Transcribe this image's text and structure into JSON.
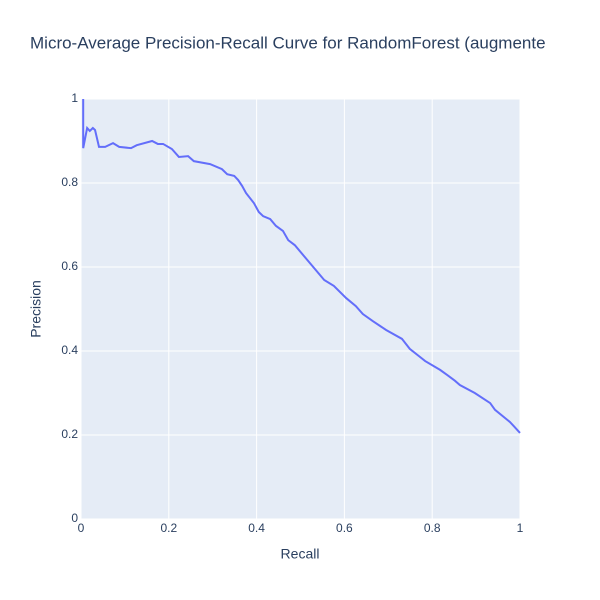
{
  "chart_data": {
    "type": "line",
    "title": "Micro-Average Precision-Recall Curve for RandomForest (augmente",
    "xlabel": "Recall",
    "ylabel": "Precision",
    "xlim": [
      0,
      1
    ],
    "ylim": [
      0,
      1
    ],
    "xticks": [
      0,
      0.2,
      0.4,
      0.6,
      0.8,
      1
    ],
    "yticks": [
      0,
      0.2,
      0.4,
      0.6,
      0.8,
      1
    ],
    "grid": true,
    "series": [
      {
        "name": "RandomForest",
        "color": "#636efa",
        "x": [
          0.005,
          0.005,
          0.014,
          0.02,
          0.027,
          0.032,
          0.041,
          0.055,
          0.073,
          0.087,
          0.114,
          0.127,
          0.162,
          0.175,
          0.187,
          0.207,
          0.223,
          0.244,
          0.257,
          0.294,
          0.321,
          0.333,
          0.349,
          0.358,
          0.367,
          0.376,
          0.394,
          0.405,
          0.415,
          0.431,
          0.444,
          0.46,
          0.472,
          0.487,
          0.554,
          0.576,
          0.604,
          0.626,
          0.642,
          0.665,
          0.695,
          0.731,
          0.749,
          0.772,
          0.784,
          0.818,
          0.834,
          0.852,
          0.863,
          0.897,
          0.932,
          0.943,
          0.977,
          0.986,
          1.0
        ],
        "values": [
          1.0,
          0.883,
          0.931,
          0.924,
          0.931,
          0.926,
          0.886,
          0.886,
          0.895,
          0.886,
          0.883,
          0.89,
          0.9,
          0.893,
          0.893,
          0.881,
          0.862,
          0.864,
          0.852,
          0.845,
          0.833,
          0.821,
          0.817,
          0.807,
          0.793,
          0.776,
          0.752,
          0.731,
          0.721,
          0.714,
          0.698,
          0.686,
          0.664,
          0.652,
          0.569,
          0.555,
          0.526,
          0.507,
          0.488,
          0.471,
          0.45,
          0.429,
          0.405,
          0.386,
          0.376,
          0.355,
          0.343,
          0.329,
          0.319,
          0.3,
          0.276,
          0.26,
          0.231,
          0.221,
          0.205
        ]
      }
    ]
  }
}
